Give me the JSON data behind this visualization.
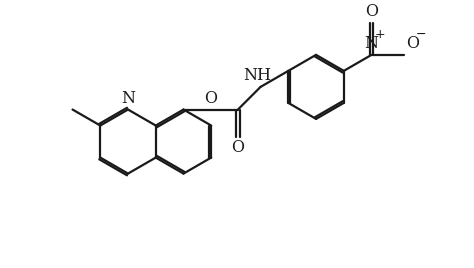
{
  "background_color": "#ffffff",
  "line_color": "#1a1a1a",
  "line_width": 1.6,
  "font_size": 10.5,
  "figsize": [
    4.74,
    2.68
  ],
  "dpi": 100,
  "xlim": [
    0,
    10
  ],
  "ylim": [
    0,
    5.6
  ]
}
